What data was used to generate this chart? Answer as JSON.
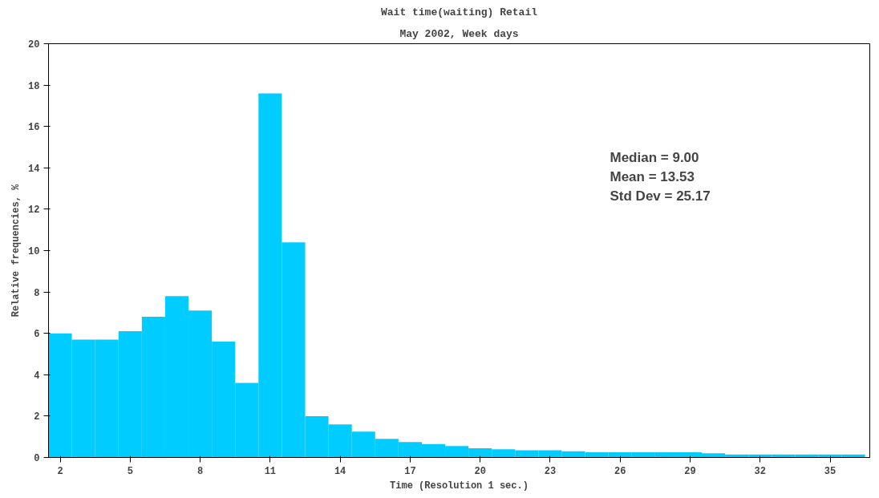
{
  "chart_data": {
    "type": "bar",
    "title": "Wait time(waiting) Retail",
    "subtitle": "May 2002, Week days",
    "xlabel": "Time (Resolution 1 sec.)",
    "ylabel": "Relative frequencies, %",
    "x": [
      2,
      3,
      4,
      5,
      6,
      7,
      8,
      9,
      10,
      11,
      12,
      13,
      14,
      15,
      16,
      17,
      18,
      19,
      20,
      21,
      22,
      23,
      24,
      25,
      26,
      27,
      28,
      29,
      30,
      31,
      32,
      33,
      34,
      35,
      36
    ],
    "values": [
      6.0,
      5.7,
      5.7,
      6.1,
      6.8,
      7.8,
      7.1,
      5.6,
      3.6,
      17.6,
      10.4,
      2.0,
      1.6,
      1.25,
      0.9,
      0.75,
      0.65,
      0.55,
      0.45,
      0.4,
      0.35,
      0.35,
      0.3,
      0.25,
      0.25,
      0.25,
      0.25,
      0.25,
      0.2,
      0.15,
      0.15,
      0.15,
      0.15,
      0.15,
      0.15
    ],
    "color": "#00ccff",
    "xlim": [
      1.5,
      36.7
    ],
    "xticks": [
      2,
      5,
      8,
      11,
      14,
      17,
      20,
      23,
      26,
      29,
      32,
      35
    ],
    "ylim": [
      0,
      20
    ],
    "yticks": [
      0,
      2,
      4,
      6,
      8,
      10,
      12,
      14,
      16,
      18,
      20
    ],
    "grid": false,
    "annotations": [
      "Median = 9.00",
      "Mean = 13.53",
      "Std Dev = 25.17"
    ]
  }
}
